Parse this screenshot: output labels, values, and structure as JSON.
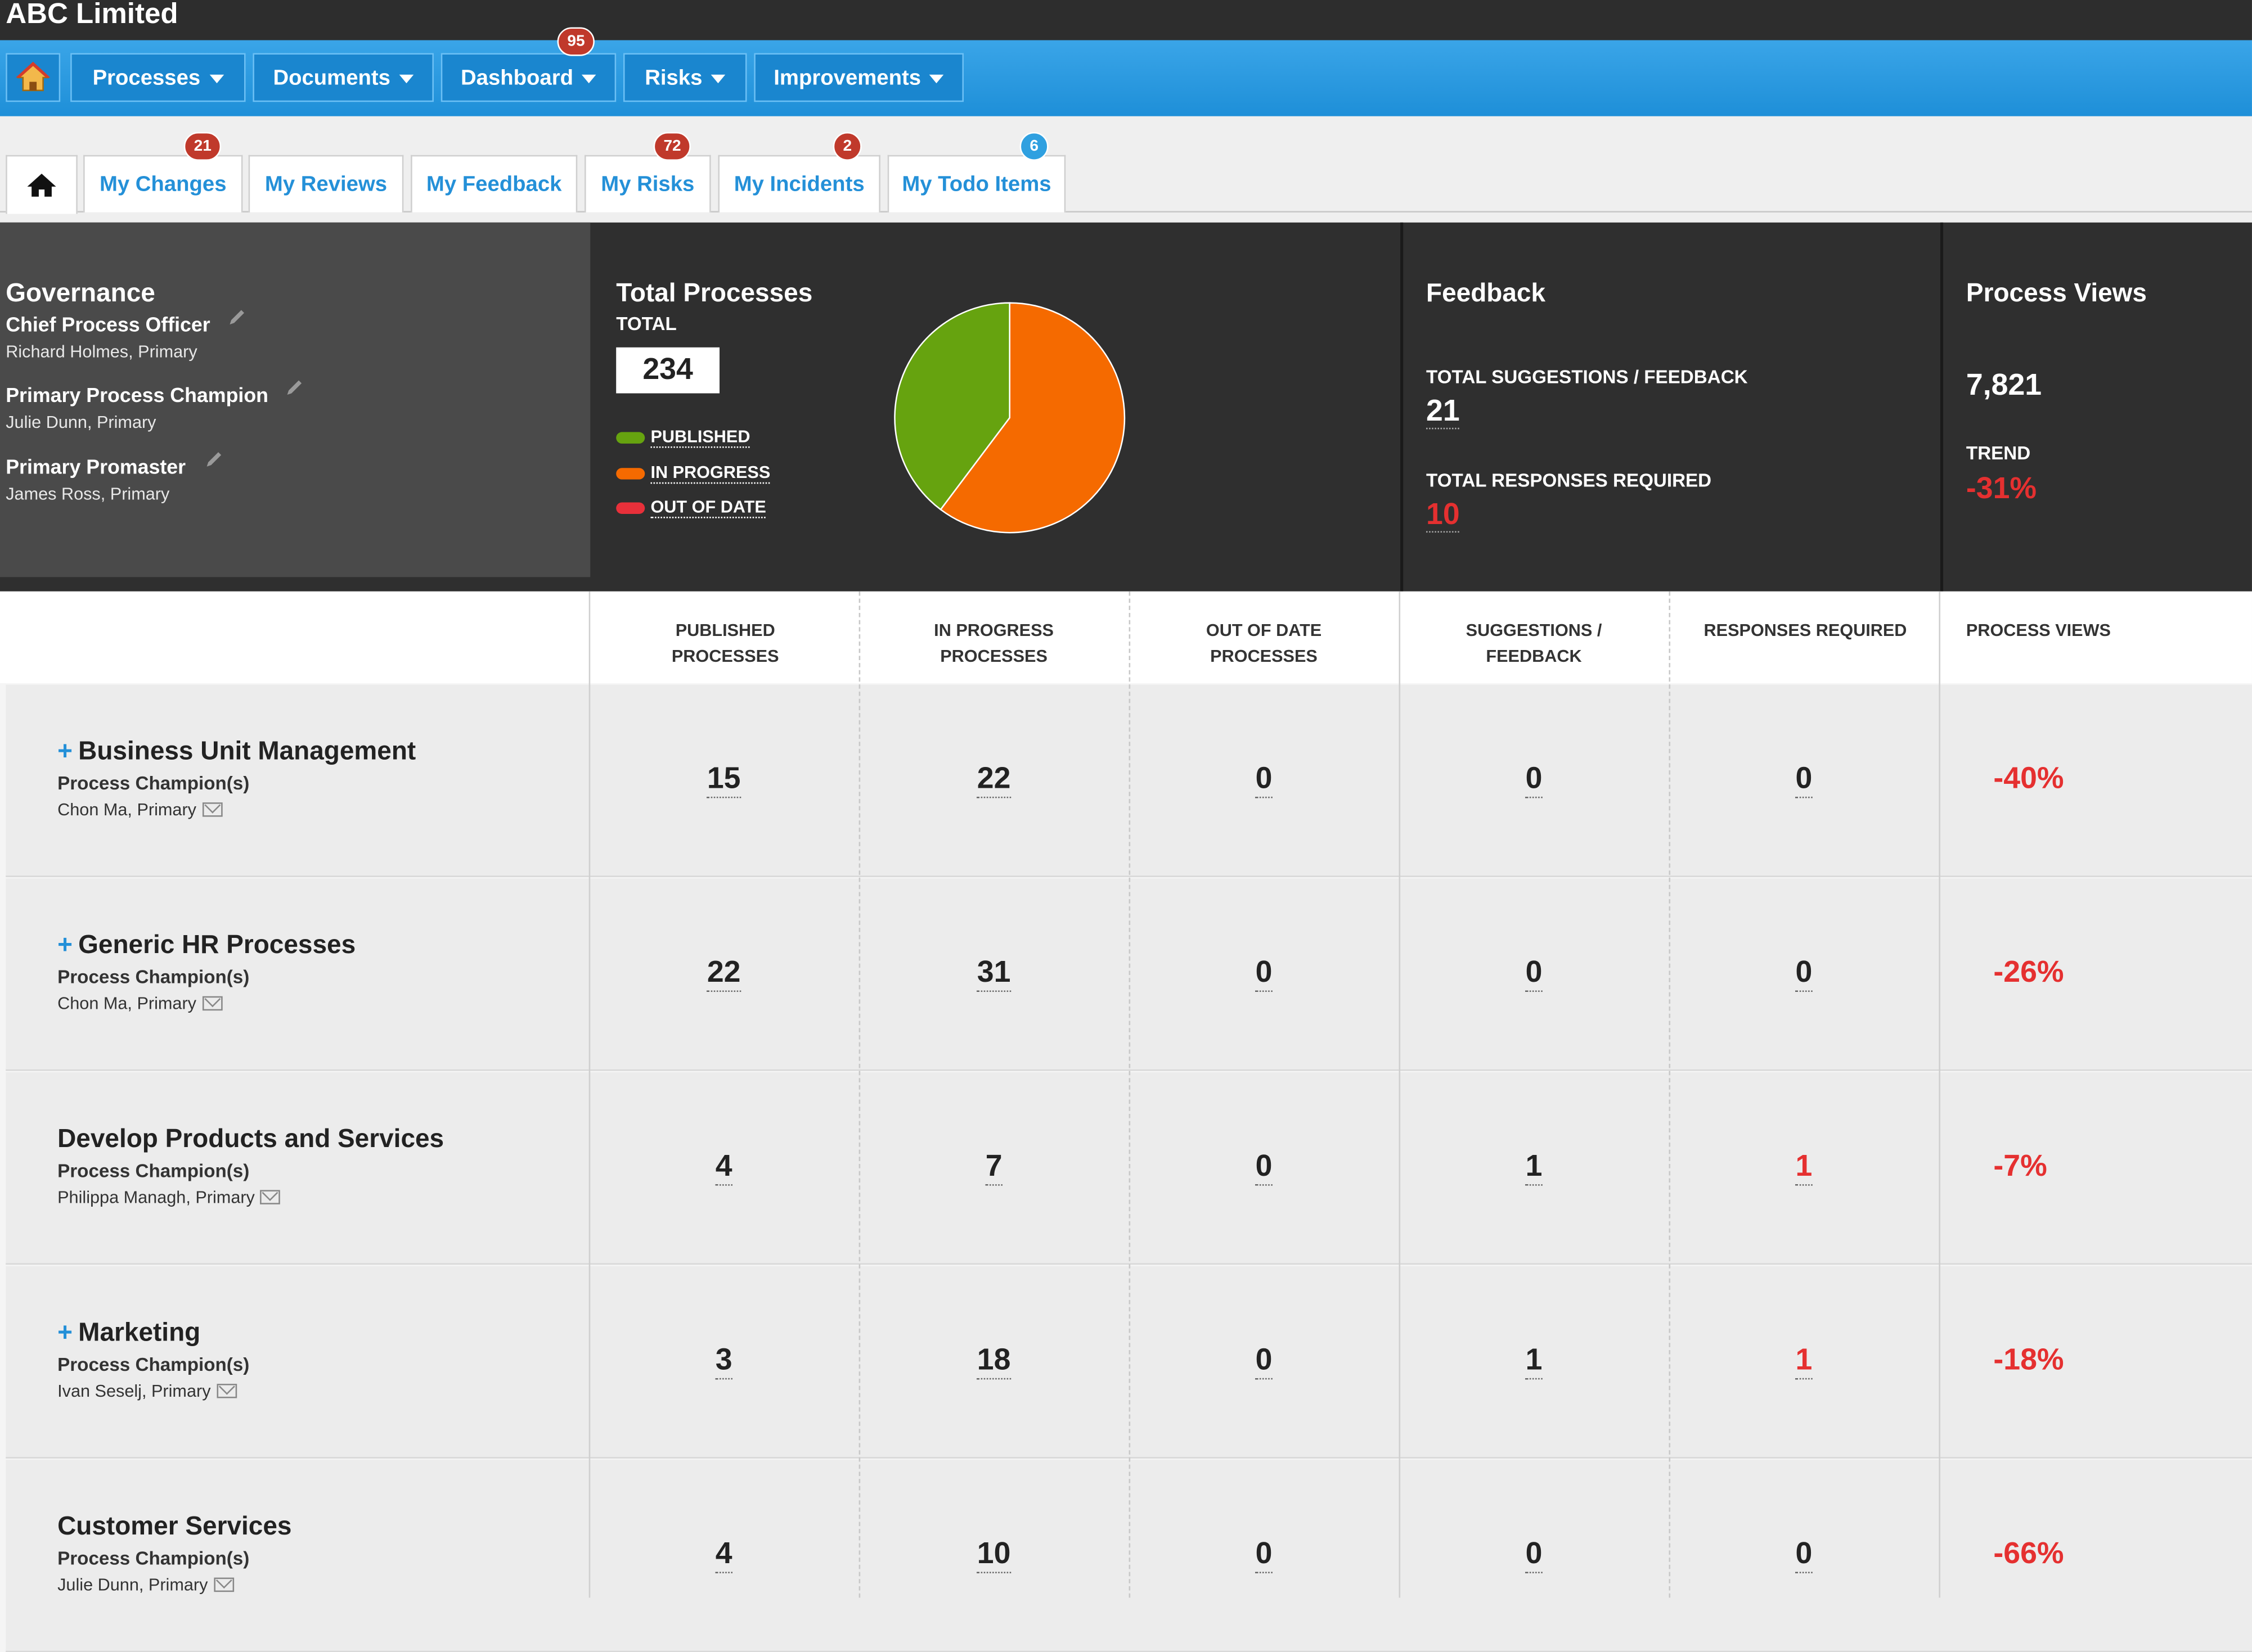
{
  "app": {
    "title": "ABC Limited"
  },
  "nav": {
    "items": [
      {
        "label": "Processes"
      },
      {
        "label": "Documents"
      },
      {
        "label": "Dashboard",
        "badge": "95"
      },
      {
        "label": "Risks"
      },
      {
        "label": "Improvements"
      }
    ]
  },
  "tabs": [
    {
      "label": "My Changes",
      "badge": "21"
    },
    {
      "label": "My Reviews"
    },
    {
      "label": "My Feedback"
    },
    {
      "label": "My Risks",
      "badge": "72"
    },
    {
      "label": "My Incidents",
      "badge": "2"
    },
    {
      "label": "My Todo Items",
      "badge": "6"
    }
  ],
  "governance": {
    "title": "Governance",
    "roles": [
      {
        "role": "Chief Process Officer",
        "name": "Richard Holmes, Primary"
      },
      {
        "role": "Primary Process Champion",
        "name": "Julie Dunn, Primary"
      },
      {
        "role": "Primary Promaster",
        "name": "James Ross, Primary"
      }
    ]
  },
  "total_processes": {
    "title": "Total Processes",
    "total_label": "TOTAL",
    "total": "234",
    "legend": [
      {
        "label": "PUBLISHED",
        "color": "#66a30f"
      },
      {
        "label": "IN PROGRESS",
        "color": "#f56a00"
      },
      {
        "label": "OUT OF DATE",
        "color": "#e8303a"
      }
    ]
  },
  "chart_data": {
    "type": "pie",
    "labels": [
      "PUBLISHED",
      "IN PROGRESS",
      "OUT OF DATE"
    ],
    "values": [
      93,
      141,
      0
    ],
    "colors": [
      "#66a30f",
      "#f56a00",
      "#e8303a"
    ]
  },
  "feedback": {
    "title": "Feedback",
    "suggestions_label": "TOTAL SUGGESTIONS / FEEDBACK",
    "suggestions": "21",
    "responses_label": "TOTAL RESPONSES REQUIRED",
    "responses": "10"
  },
  "views": {
    "title": "Process Views",
    "count": "7,821",
    "trend_label": "TREND",
    "trend": "-31%"
  },
  "table": {
    "headers": [
      [
        "PUBLISHED",
        "PROCESSES"
      ],
      [
        "IN PROGRESS",
        "PROCESSES"
      ],
      [
        "OUT OF DATE",
        "PROCESSES"
      ],
      [
        "SUGGESTIONS /",
        "FEEDBACK"
      ],
      [
        "RESPONSES REQUIRED",
        ""
      ],
      [
        "PROCESS VIEWS",
        ""
      ]
    ],
    "champion_label": "Process Champion(s)",
    "rows": [
      {
        "name": "Business Unit Management",
        "expandable": true,
        "champion": "Chon Ma, Primary",
        "published": "15",
        "in_progress": "22",
        "out_of_date": "0",
        "suggestions": "0",
        "responses": "0",
        "views": "-40%"
      },
      {
        "name": "Generic HR Processes",
        "expandable": true,
        "champion": "Chon Ma, Primary",
        "published": "22",
        "in_progress": "31",
        "out_of_date": "0",
        "suggestions": "0",
        "responses": "0",
        "views": "-26%"
      },
      {
        "name": "Develop Products and Services",
        "expandable": false,
        "champion": "Philippa Managh, Primary",
        "published": "4",
        "in_progress": "7",
        "out_of_date": "0",
        "suggestions": "1",
        "responses": "1",
        "views": "-7%"
      },
      {
        "name": "Marketing",
        "expandable": true,
        "champion": "Ivan Seselj, Primary",
        "published": "3",
        "in_progress": "18",
        "out_of_date": "0",
        "suggestions": "1",
        "responses": "1",
        "views": "-18%"
      },
      {
        "name": "Customer Services",
        "expandable": false,
        "champion": "Julie Dunn, Primary",
        "published": "4",
        "in_progress": "10",
        "out_of_date": "0",
        "suggestions": "0",
        "responses": "0",
        "views": "-66%"
      }
    ]
  }
}
